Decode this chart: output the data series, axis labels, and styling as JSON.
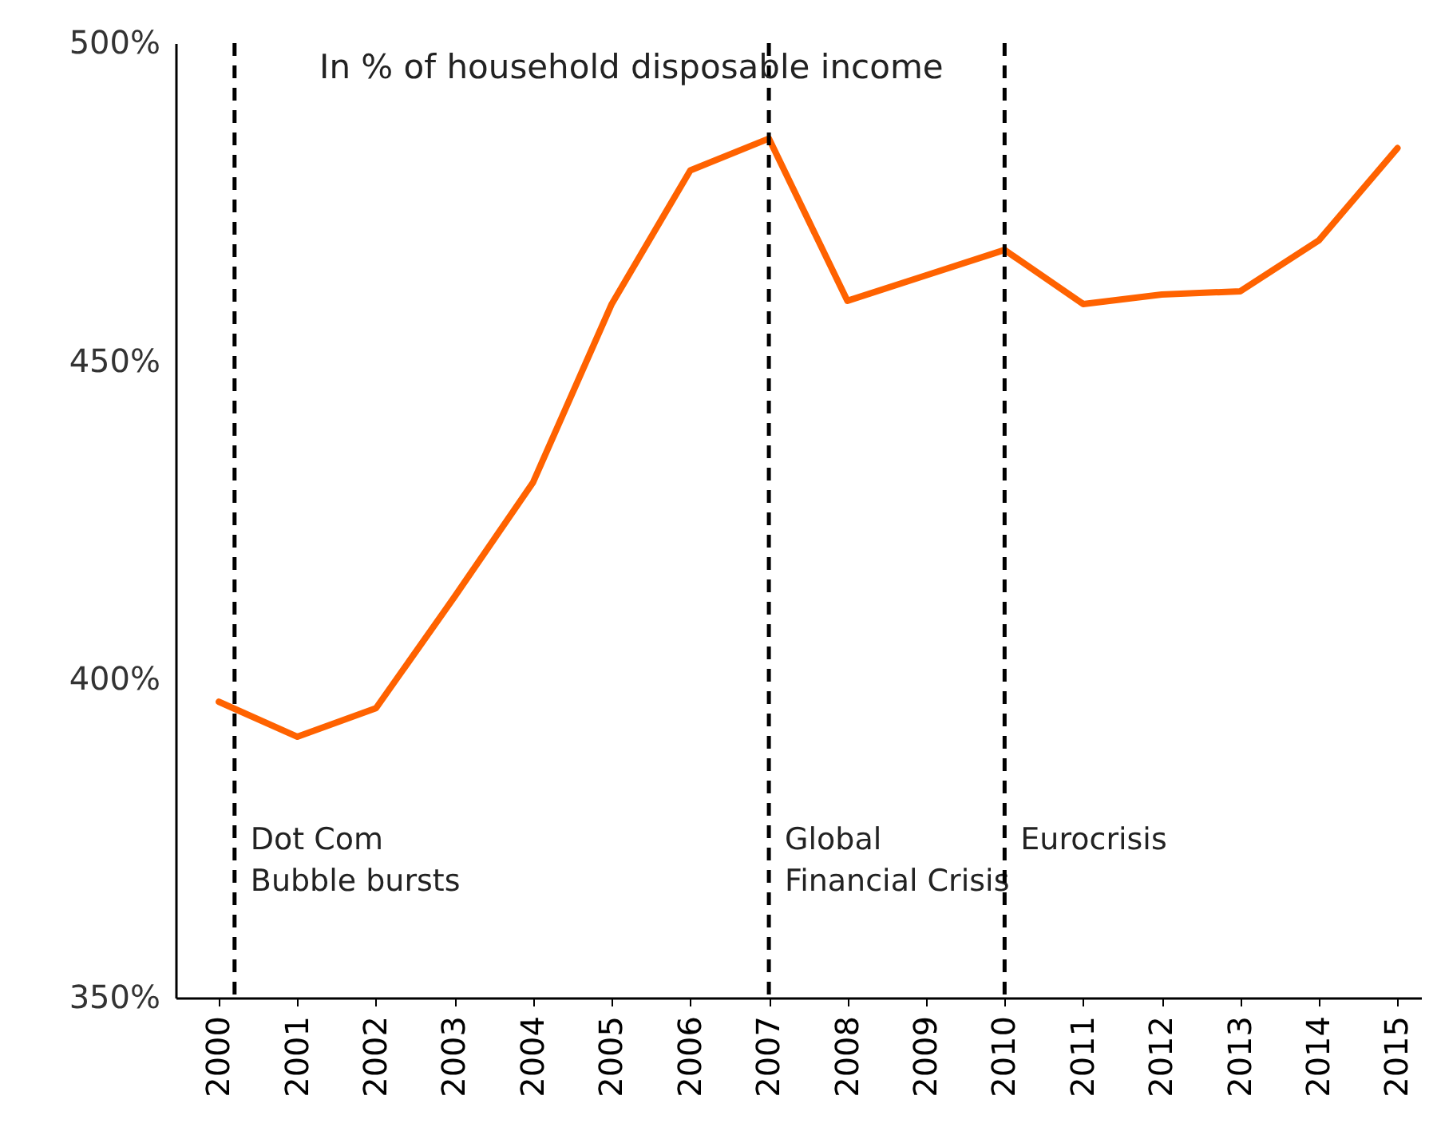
{
  "chart_data": {
    "type": "line",
    "title": "In % of household disposable income",
    "x": [
      2000,
      2001,
      2002,
      2003,
      2004,
      2005,
      2006,
      2007,
      2008,
      2009,
      2010,
      2011,
      2012,
      2013,
      2014,
      2015
    ],
    "series": [
      {
        "color": "#ff6200",
        "values": [
          396.5,
          391,
          395.5,
          413,
          431,
          459,
          480,
          485,
          459.5,
          463.5,
          467.5,
          459,
          460.5,
          461,
          469,
          483.5
        ]
      }
    ],
    "xlim": [
      1999.45,
      2015.3
    ],
    "xticks": [
      2000,
      2001,
      2002,
      2003,
      2004,
      2005,
      2006,
      2007,
      2008,
      2009,
      2010,
      2011,
      2012,
      2013,
      2014,
      2015
    ],
    "ylim": [
      350,
      500
    ],
    "yticks": [
      {
        "value": 350,
        "label": "350%"
      },
      {
        "value": 400,
        "label": "400%"
      },
      {
        "value": 450,
        "label": "450%"
      },
      {
        "value": 500,
        "label": "500%"
      }
    ],
    "ref_lines": [
      {
        "axis": "x",
        "value": 2000.2,
        "label": "Dot Com\nBubble bursts",
        "color": "#000000",
        "line_style": "dashed"
      },
      {
        "axis": "x",
        "value": 2007,
        "label": "Global\nFinancial Crisis",
        "color": "#000000",
        "line_style": "dashed"
      },
      {
        "axis": "x",
        "value": 2010,
        "label": "Eurocrisis",
        "color": "#000000",
        "line_style": "dashed"
      }
    ],
    "grid": false,
    "marker": "none",
    "line_style": "solid"
  }
}
